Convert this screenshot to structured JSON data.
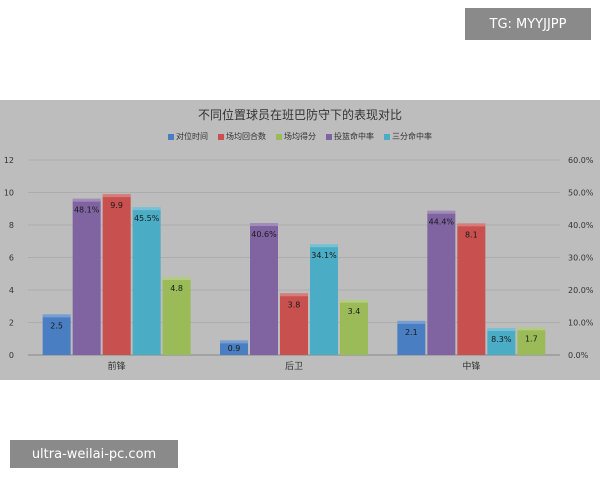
{
  "badge": {
    "text": "TG: MYYJJPP"
  },
  "watermark": {
    "text": "ultra-weilai-pc.com"
  },
  "colors": {
    "panel_bg": "#bdbdbd",
    "series": [
      "#4a7ec2",
      "#c8504e",
      "#9bbb59",
      "#8064a2",
      "#4bacc6"
    ]
  },
  "chart_data": {
    "type": "bar",
    "title": "不同位置球员在班巴防守下的表现对比",
    "categories": [
      "前锋",
      "后卫",
      "中锋"
    ],
    "series": [
      {
        "name": "对位时间",
        "axis": "left",
        "values": [
          2.5,
          0.9,
          2.1
        ],
        "labels": [
          "2.5",
          "0.9",
          "2.1"
        ]
      },
      {
        "name": "场均回合数",
        "axis": "left",
        "values": [
          9.9,
          3.8,
          8.1
        ],
        "labels": [
          "9.9",
          "3.8",
          "8.1"
        ]
      },
      {
        "name": "场均得分",
        "axis": "left",
        "values": [
          4.8,
          3.4,
          1.7
        ],
        "labels": [
          "4.8",
          "3.4",
          "1.7"
        ]
      },
      {
        "name": "投篮命中率",
        "axis": "right",
        "values": [
          48.1,
          40.6,
          44.4
        ],
        "labels": [
          "48.1%",
          "40.6%",
          "44.4%"
        ]
      },
      {
        "name": "三分命中率",
        "axis": "right",
        "values": [
          45.5,
          34.1,
          8.3
        ],
        "labels": [
          "45.5%",
          "34.1%",
          "8.3%"
        ]
      }
    ],
    "bar_order": [
      0,
      3,
      1,
      4,
      2
    ],
    "ylim_left": [
      0,
      12
    ],
    "yticks_left": [
      "0",
      "2",
      "4",
      "6",
      "8",
      "10",
      "12"
    ],
    "ylim_right": [
      0,
      60
    ],
    "yticks_right": [
      "0.0%",
      "10.0%",
      "20.0%",
      "30.0%",
      "40.0%",
      "50.0%",
      "60.0%"
    ],
    "grid": true,
    "legend_position": "top"
  }
}
